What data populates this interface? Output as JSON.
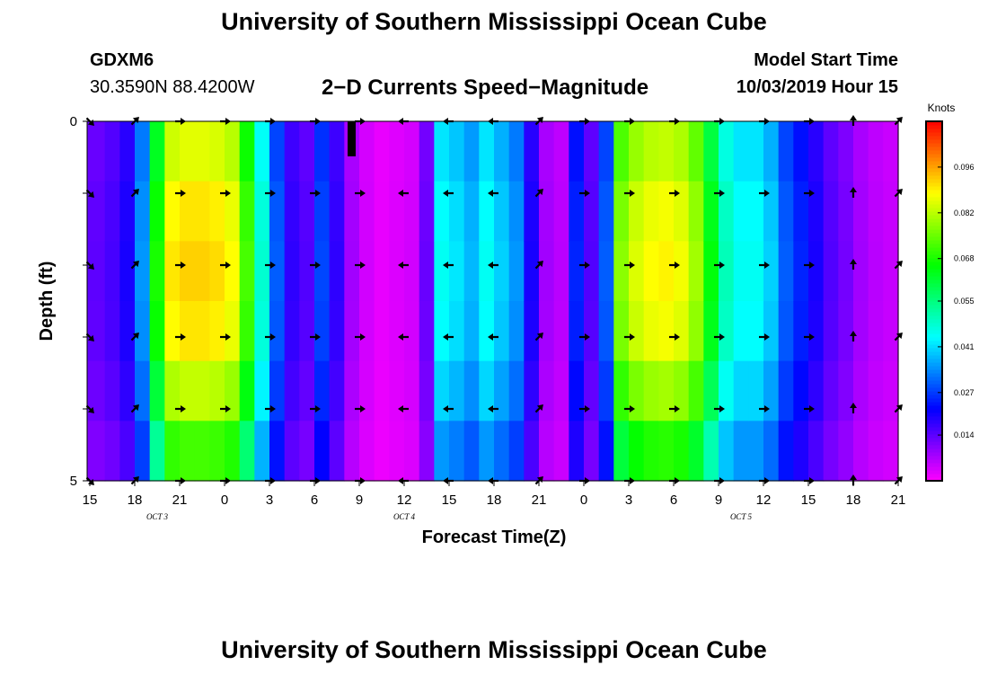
{
  "header": {
    "title": "University of Southern Mississippi Ocean Cube",
    "station_id": "GDXM6",
    "station_coords": "30.3590N 88.4200W",
    "plot_title": "2−D Currents Speed−Magnitude",
    "model_start_label": "Model Start Time",
    "model_start_value": "10/03/2019 Hour 15"
  },
  "footer": {
    "title": "University of Southern Mississippi Ocean Cube"
  },
  "chart_data": {
    "type": "heatmap",
    "title": "2−D Currents Speed−Magnitude",
    "xlabel": "Forecast Time(Z)",
    "ylabel": "Depth (ft)",
    "x_tick_labels": [
      "15",
      "18",
      "21",
      "0",
      "3",
      "6",
      "9",
      "12",
      "15",
      "18",
      "21",
      "0",
      "3",
      "6",
      "9",
      "12",
      "15",
      "18",
      "21"
    ],
    "date_labels": [
      {
        "text": "OCT 3",
        "x_hours": 4.5
      },
      {
        "text": "OCT 4",
        "x_hours": 21
      },
      {
        "text": "OCT 5",
        "x_hours": 43.5
      }
    ],
    "x_range_hours": [
      0,
      54
    ],
    "hours_per_column": 3,
    "depth_range_ft": [
      0,
      5
    ],
    "y_tick_labels": [
      "0",
      "5"
    ],
    "depth_levels_ft": [
      0,
      1,
      2,
      3,
      4,
      5
    ],
    "colorbar": {
      "unit": "Knots",
      "min": 0.0,
      "max": 0.11,
      "tick_values": [
        0.014,
        0.027,
        0.041,
        0.055,
        0.068,
        0.082,
        0.096
      ],
      "tick_labels": [
        "0.014",
        "0.027",
        "0.041",
        "0.055",
        "0.068",
        "0.082",
        "0.096"
      ]
    },
    "speed_knots_by_hour": [
      0.014,
      0.016,
      0.02,
      0.035,
      0.068,
      0.09,
      0.092,
      0.092,
      0.091,
      0.088,
      0.072,
      0.048,
      0.03,
      0.018,
      0.015,
      0.028,
      0.018,
      0.008,
      0.004,
      0.002,
      0.003,
      0.004,
      0.013,
      0.045,
      0.042,
      0.038,
      0.045,
      0.04,
      0.035,
      0.02,
      0.008,
      0.006,
      0.025,
      0.015,
      0.03,
      0.078,
      0.085,
      0.088,
      0.089,
      0.087,
      0.08,
      0.065,
      0.05,
      0.045,
      0.045,
      0.04,
      0.03,
      0.025,
      0.02,
      0.015,
      0.012,
      0.008,
      0.006,
      0.005
    ],
    "depth_speed_factor": [
      0.93,
      0.98,
      1.0,
      0.98,
      0.9,
      0.78
    ],
    "current_direction_deg_by_column": [
      135,
      45,
      90,
      90,
      90,
      90,
      90,
      270,
      270,
      270,
      45,
      90,
      90,
      90,
      90,
      90,
      90,
      0,
      45
    ]
  }
}
